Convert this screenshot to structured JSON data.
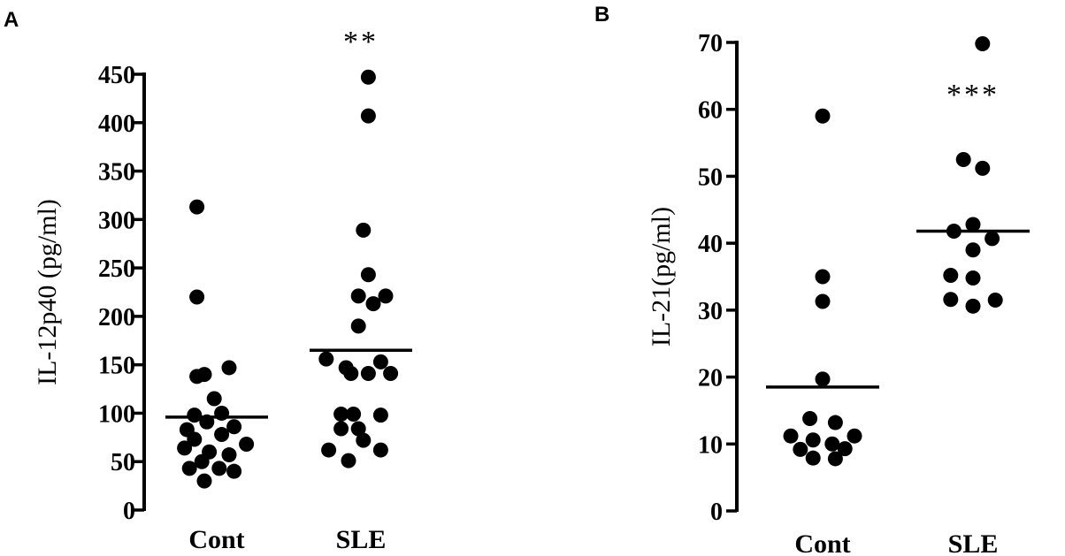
{
  "chart_data": [
    {
      "type": "scatter",
      "panel_label": "A",
      "categories": [
        "Cont",
        "SLE"
      ],
      "ylabel": "IL-12p40 (pg/ml)",
      "ylim": [
        0,
        450
      ],
      "yticks": [
        0,
        50,
        100,
        150,
        200,
        250,
        300,
        350,
        400,
        450
      ],
      "grid": false,
      "series": [
        {
          "category": "Cont",
          "mean": 96,
          "points": [
            {
              "offset": -0.8,
              "y": 313
            },
            {
              "offset": -0.8,
              "y": 220
            },
            {
              "offset": 0.5,
              "y": 147
            },
            {
              "offset": -0.5,
              "y": 140
            },
            {
              "offset": -0.8,
              "y": 138
            },
            {
              "offset": -0.1,
              "y": 115
            },
            {
              "offset": 0.2,
              "y": 100
            },
            {
              "offset": -0.9,
              "y": 98
            },
            {
              "offset": -0.4,
              "y": 91
            },
            {
              "offset": 0.7,
              "y": 86
            },
            {
              "offset": -1.2,
              "y": 83
            },
            {
              "offset": 0.2,
              "y": 78
            },
            {
              "offset": -0.9,
              "y": 73
            },
            {
              "offset": 1.2,
              "y": 68
            },
            {
              "offset": -1.3,
              "y": 64
            },
            {
              "offset": -0.3,
              "y": 60
            },
            {
              "offset": 0.5,
              "y": 57
            },
            {
              "offset": -0.6,
              "y": 50
            },
            {
              "offset": -1.1,
              "y": 43
            },
            {
              "offset": 0.1,
              "y": 43
            },
            {
              "offset": 0.7,
              "y": 40
            },
            {
              "offset": -0.5,
              "y": 30
            }
          ]
        },
        {
          "category": "SLE",
          "mean": 165,
          "points": [
            {
              "offset": 0.3,
              "y": 447
            },
            {
              "offset": 0.3,
              "y": 407
            },
            {
              "offset": 0.1,
              "y": 289
            },
            {
              "offset": 0.3,
              "y": 243
            },
            {
              "offset": 1.0,
              "y": 221
            },
            {
              "offset": -0.1,
              "y": 221
            },
            {
              "offset": 0.5,
              "y": 213
            },
            {
              "offset": -0.1,
              "y": 190
            },
            {
              "offset": -1.4,
              "y": 156
            },
            {
              "offset": 0.8,
              "y": 153
            },
            {
              "offset": -0.6,
              "y": 147
            },
            {
              "offset": -0.4,
              "y": 141
            },
            {
              "offset": 1.2,
              "y": 141
            },
            {
              "offset": 0.3,
              "y": 141
            },
            {
              "offset": -0.8,
              "y": 99
            },
            {
              "offset": -0.3,
              "y": 99
            },
            {
              "offset": 0.8,
              "y": 98
            },
            {
              "offset": -0.1,
              "y": 84
            },
            {
              "offset": -0.8,
              "y": 84
            },
            {
              "offset": 0.1,
              "y": 72
            },
            {
              "offset": -1.3,
              "y": 62
            },
            {
              "offset": 0.8,
              "y": 62
            },
            {
              "offset": -0.5,
              "y": 51
            }
          ]
        }
      ],
      "annotations": [
        {
          "category": "SLE",
          "text": "**"
        }
      ]
    },
    {
      "type": "scatter",
      "panel_label": "B",
      "categories": [
        "Cont",
        "SLE"
      ],
      "ylabel": "IL-21(pg/ml)",
      "ylim": [
        0,
        70
      ],
      "yticks": [
        0,
        10,
        20,
        30,
        40,
        50,
        60,
        70
      ],
      "grid": false,
      "series": [
        {
          "category": "Cont",
          "mean": 18.5,
          "points": [
            {
              "offset": 0.0,
              "y": 59
            },
            {
              "offset": 0.0,
              "y": 35
            },
            {
              "offset": 0.0,
              "y": 31.3
            },
            {
              "offset": 0.0,
              "y": 19.7
            },
            {
              "offset": -0.4,
              "y": 13.8
            },
            {
              "offset": 0.4,
              "y": 13.2
            },
            {
              "offset": -1.0,
              "y": 11.2
            },
            {
              "offset": 1.0,
              "y": 11.2
            },
            {
              "offset": -0.3,
              "y": 10.6
            },
            {
              "offset": 0.3,
              "y": 10.0
            },
            {
              "offset": -0.7,
              "y": 9.2
            },
            {
              "offset": 0.7,
              "y": 9.3
            },
            {
              "offset": -0.3,
              "y": 7.9
            },
            {
              "offset": 0.4,
              "y": 7.8
            }
          ]
        },
        {
          "category": "SLE",
          "mean": 41.8,
          "points": [
            {
              "offset": 0.3,
              "y": 69.8
            },
            {
              "offset": -0.3,
              "y": 52.5
            },
            {
              "offset": 0.3,
              "y": 51.2
            },
            {
              "offset": 0.0,
              "y": 42.8
            },
            {
              "offset": -0.6,
              "y": 41.8
            },
            {
              "offset": 0.6,
              "y": 40.7
            },
            {
              "offset": 0.0,
              "y": 39.0
            },
            {
              "offset": -0.7,
              "y": 35.2
            },
            {
              "offset": 0.0,
              "y": 34.8
            },
            {
              "offset": -0.7,
              "y": 31.6
            },
            {
              "offset": 0.7,
              "y": 31.5
            },
            {
              "offset": 0.0,
              "y": 30.6
            }
          ]
        }
      ],
      "annotations": [
        {
          "category": "SLE",
          "text": "***"
        }
      ]
    }
  ]
}
